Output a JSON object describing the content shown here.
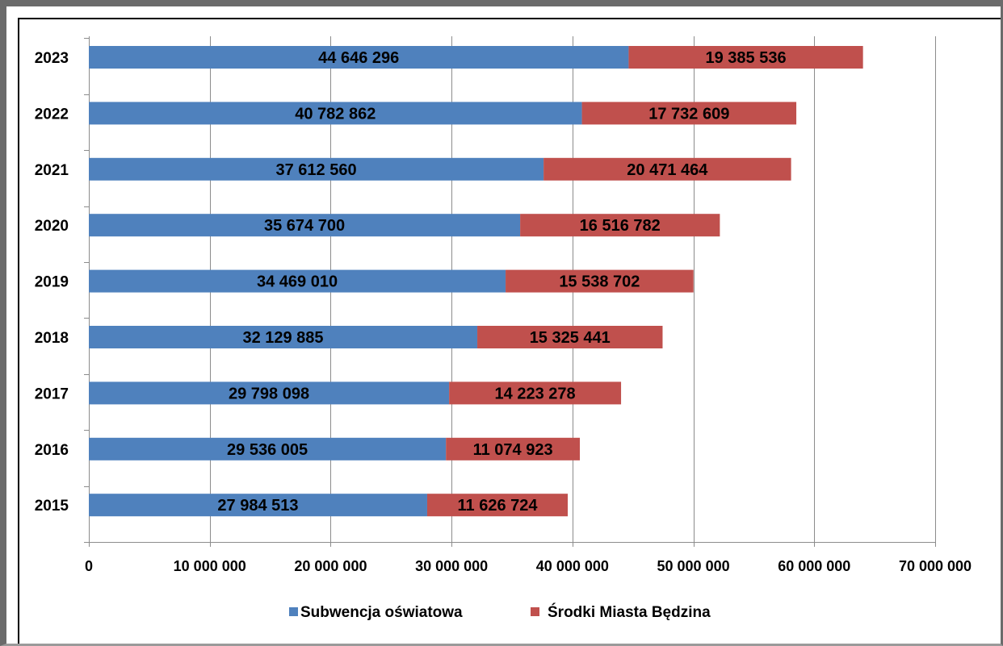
{
  "chart_data": {
    "type": "bar",
    "orientation": "horizontal",
    "stacked": true,
    "categories": [
      "2015",
      "2016",
      "2017",
      "2018",
      "2019",
      "2020",
      "2021",
      "2022",
      "2023"
    ],
    "series": [
      {
        "name": "Subwencja oświatowa",
        "color": "#4f81bd",
        "values": [
          27984513,
          29536005,
          29798098,
          32129885,
          34469010,
          35674700,
          37612560,
          40782862,
          44646296
        ],
        "labels": [
          "27 984 513",
          "29 536 005",
          "29 798 098",
          "32 129 885",
          "34 469 010",
          "35 674 700",
          "37 612 560",
          "40 782 862",
          "44 646 296"
        ]
      },
      {
        "name": "Środki Miasta Będzina",
        "color": "#c0504d",
        "values": [
          11626724,
          11074923,
          14223278,
          15325441,
          15538702,
          16516782,
          20471464,
          17732609,
          19385536
        ],
        "labels": [
          "11 626 724",
          "11 074 923",
          "14 223 278",
          "15 325 441",
          "15 538 702",
          "16 516 782",
          "20 471 464",
          "17 732 609",
          "19 385 536"
        ]
      }
    ],
    "xlim": [
      0,
      70000000
    ],
    "x_ticks": [
      0,
      10000000,
      20000000,
      30000000,
      40000000,
      50000000,
      60000000,
      70000000
    ],
    "x_tick_labels": [
      "0",
      "10 000 000",
      "20 000 000",
      "30 000 000",
      "40 000 000",
      "50 000 000",
      "60 000 000",
      "70 000 000"
    ],
    "grid": "vertical",
    "legend": "bottom",
    "title": "",
    "xlabel": "",
    "ylabel": ""
  }
}
